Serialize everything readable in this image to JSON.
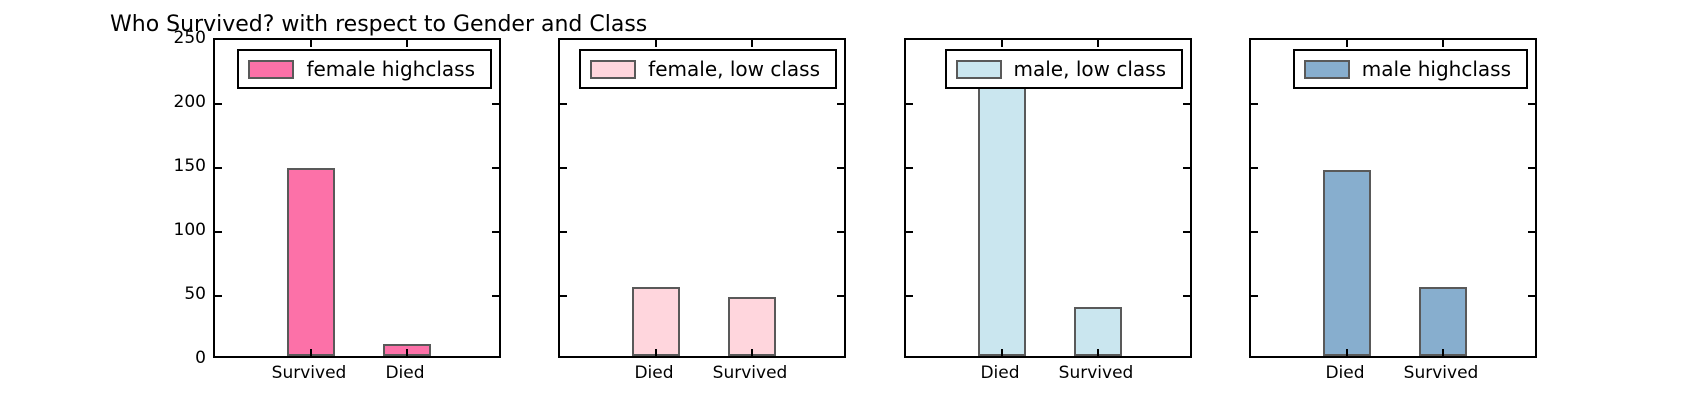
{
  "figure": {
    "title": "Who Survived? with respect to Gender and Class",
    "background_color": "#ffffff",
    "frame_color": "#000000",
    "bar_edge_color": "#595959",
    "text_color": "#000000"
  },
  "chart_data": [
    {
      "type": "bar",
      "legend": "female highclass",
      "color": "#FC71A8",
      "categories": [
        "Survived",
        "Died"
      ],
      "values": [
        147,
        9
      ],
      "ylim": [
        0,
        250
      ],
      "yticks": [
        "0",
        "50",
        "100",
        "150",
        "200",
        "250"
      ],
      "show_ytick_labels": true,
      "legend_position": "upper right",
      "grid": false
    },
    {
      "type": "bar",
      "legend": "female, low class",
      "color": "#FFD6DD",
      "categories": [
        "Died",
        "Survived"
      ],
      "values": [
        54,
        46
      ],
      "ylim": [
        0,
        250
      ],
      "yticks": [
        "0",
        "50",
        "100",
        "150",
        "200",
        "250"
      ],
      "show_ytick_labels": false,
      "legend_position": "upper right",
      "grid": false
    },
    {
      "type": "bar",
      "legend": "male, low class",
      "color": "#CAE6EF",
      "categories": [
        "Died",
        "Survived"
      ],
      "values": [
        215,
        38
      ],
      "ylim": [
        0,
        250
      ],
      "yticks": [
        "0",
        "50",
        "100",
        "150",
        "200",
        "250"
      ],
      "show_ytick_labels": false,
      "legend_position": "upper right",
      "grid": false
    },
    {
      "type": "bar",
      "legend": "male highclass",
      "color": "#87AECE",
      "categories": [
        "Died",
        "Survived"
      ],
      "values": [
        145,
        54
      ],
      "ylim": [
        0,
        250
      ],
      "yticks": [
        "0",
        "50",
        "100",
        "150",
        "200",
        "250"
      ],
      "show_ytick_labels": false,
      "legend_position": "upper right",
      "grid": false
    }
  ]
}
